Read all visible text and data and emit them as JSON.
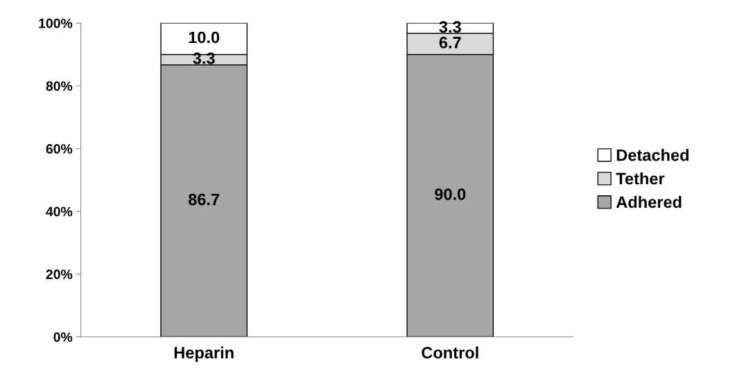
{
  "chart_data": {
    "type": "bar",
    "stacked": true,
    "categories": [
      "Heparin",
      "Control"
    ],
    "series": [
      {
        "name": "Adhered",
        "color": "#a6a6a6",
        "values": [
          86.7,
          90.0
        ],
        "value_labels": [
          "86.7",
          "90.0"
        ]
      },
      {
        "name": "Tether",
        "color": "#d9d9d9",
        "values": [
          3.3,
          6.7
        ],
        "value_labels": [
          "3.3",
          "6.7"
        ]
      },
      {
        "name": "Detached",
        "color": "#ffffff",
        "values": [
          10.0,
          3.3
        ],
        "value_labels": [
          "10.0",
          "3.3"
        ]
      }
    ],
    "ylim": [
      0,
      100
    ],
    "yticks": [
      {
        "value": 0,
        "label": "0%"
      },
      {
        "value": 20,
        "label": "20%"
      },
      {
        "value": 40,
        "label": "40%"
      },
      {
        "value": 60,
        "label": "60%"
      },
      {
        "value": 80,
        "label": "80%"
      },
      {
        "value": 100,
        "label": "100%"
      }
    ],
    "grid": false,
    "legend": "right"
  }
}
